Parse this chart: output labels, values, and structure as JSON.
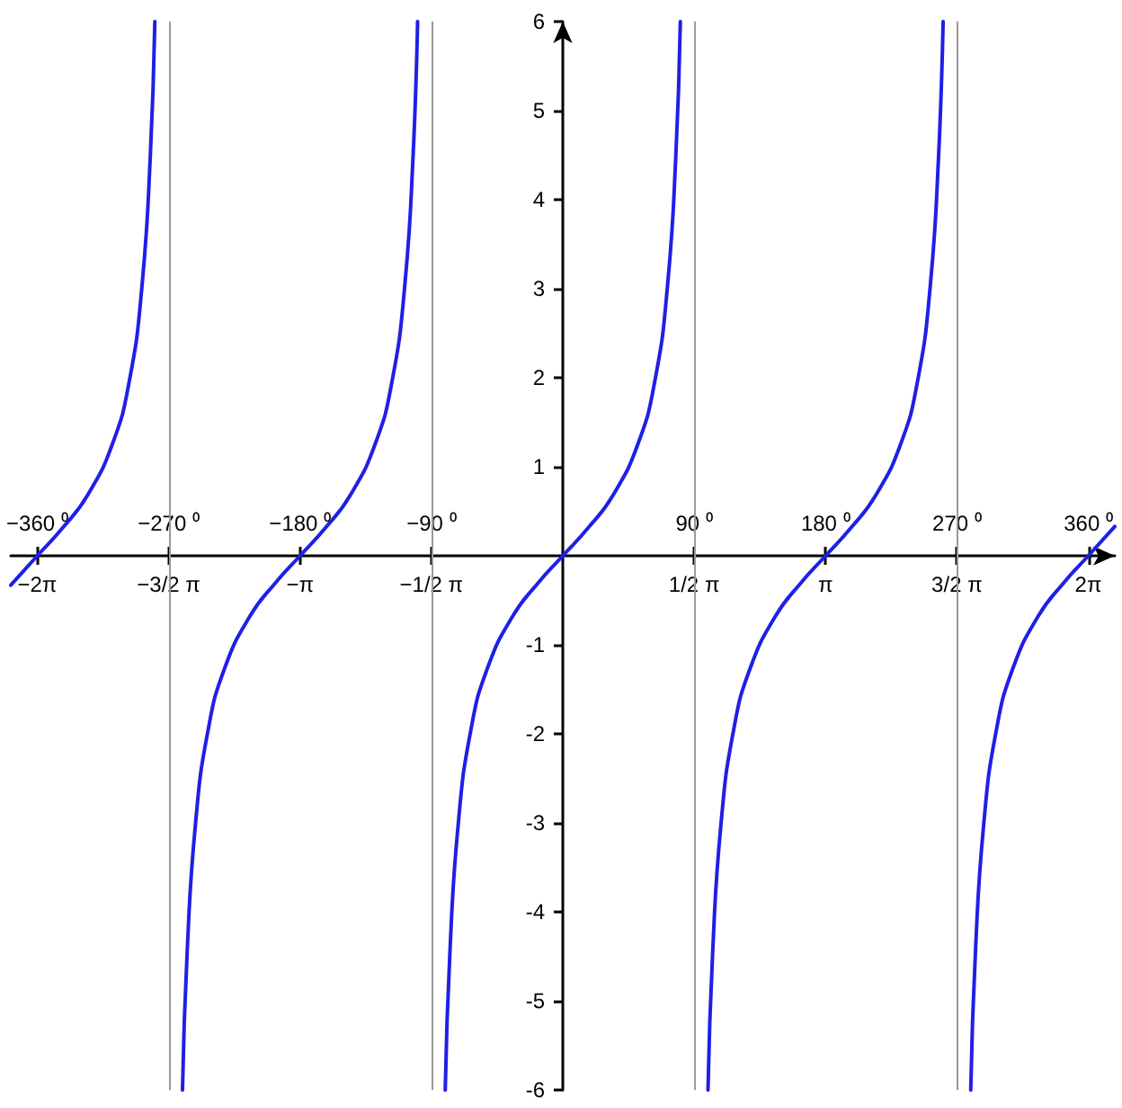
{
  "chart_data": {
    "type": "line",
    "x": [
      -6.6,
      -6.2832,
      -5.9832,
      -5.6832,
      -5.3832,
      -5.1832,
      -5.0332,
      -4.9332,
      -4.8776,
      -4.7124,
      -4.5472,
      -4.4916,
      -4.3916,
      -4.2416,
      -4.0416,
      -3.7416,
      -3.4416,
      -3.1416,
      -2.8416,
      -2.5416,
      -2.2416,
      -2.0416,
      -1.8916,
      -1.7916,
      -1.736,
      -1.5708,
      -1.4056,
      -1.35,
      -1.25,
      -1.1,
      -0.9,
      -0.6,
      -0.3,
      0,
      0.3,
      0.6,
      0.9,
      1.1,
      1.25,
      1.35,
      1.4056,
      1.5708,
      1.736,
      1.7916,
      1.8916,
      2.0416,
      2.2416,
      2.5416,
      2.8416,
      3.1416,
      3.4416,
      3.7416,
      4.0416,
      4.2416,
      4.3916,
      4.4916,
      4.5472,
      4.7124,
      4.8776,
      4.9332,
      5.0332,
      5.1832,
      5.3832,
      5.6832,
      5.9832,
      6.2832,
      6.6
    ],
    "series": [
      {
        "color": "#1f1fe6",
        "values": [
          -0.33,
          0,
          0.31,
          0.68,
          1.26,
          1.96,
          3.01,
          4.46,
          6,
          null,
          -6,
          -4.46,
          -3.01,
          -1.96,
          -1.26,
          -0.68,
          -0.31,
          0,
          0.31,
          0.68,
          1.26,
          1.96,
          3.01,
          4.46,
          6,
          null,
          -6,
          -4.46,
          -3.01,
          -1.96,
          -1.26,
          -0.68,
          -0.31,
          0,
          0.31,
          0.68,
          1.26,
          1.96,
          3.01,
          4.46,
          6,
          null,
          -6,
          -4.46,
          -3.01,
          -1.96,
          -1.26,
          -0.68,
          -0.31,
          0,
          0.31,
          0.68,
          1.26,
          1.96,
          3.01,
          4.46,
          6,
          null,
          -6,
          -4.46,
          -3.01,
          -1.96,
          -1.26,
          -0.68,
          -0.31,
          0,
          0.33
        ]
      }
    ],
    "xlim": [
      -6.6,
      6.6
    ],
    "ylim": [
      -6,
      6
    ],
    "xticks": [
      {
        "value": -6.2832,
        "label": "−2π"
      },
      {
        "value": -4.7124,
        "label": "−3/2 π"
      },
      {
        "value": -3.1416,
        "label": "−π"
      },
      {
        "value": -1.5708,
        "label": "−1/2 π"
      },
      {
        "value": 1.5708,
        "label": "1/2 π"
      },
      {
        "value": 3.1416,
        "label": "π"
      },
      {
        "value": 4.7124,
        "label": "3/2 π"
      },
      {
        "value": 6.2832,
        "label": "2π"
      }
    ],
    "x2lim": [
      -378.15,
      378.15
    ],
    "x2ticks": [
      {
        "value": -360,
        "label": "−360 ⁰"
      },
      {
        "value": -270,
        "label": "−270 ⁰"
      },
      {
        "value": -180,
        "label": "−180 ⁰"
      },
      {
        "value": -90,
        "label": "−90 ⁰"
      },
      {
        "value": 90,
        "label": "90 ⁰"
      },
      {
        "value": 180,
        "label": "180 ⁰"
      },
      {
        "value": 270,
        "label": "270 ⁰"
      },
      {
        "value": 360,
        "label": "360 ⁰"
      }
    ],
    "yticks": [
      -6,
      -5,
      -4,
      -3,
      -2,
      -1,
      1,
      2,
      3,
      4,
      5,
      6
    ],
    "ref_lines": [
      {
        "axis": "x",
        "value": -4.7124,
        "color": "#999999"
      },
      {
        "axis": "x",
        "value": -1.5708,
        "color": "#999999"
      },
      {
        "axis": "x",
        "value": 1.5708,
        "color": "#999999"
      },
      {
        "axis": "x",
        "value": 4.7124,
        "color": "#999999"
      }
    ],
    "grid": false
  }
}
